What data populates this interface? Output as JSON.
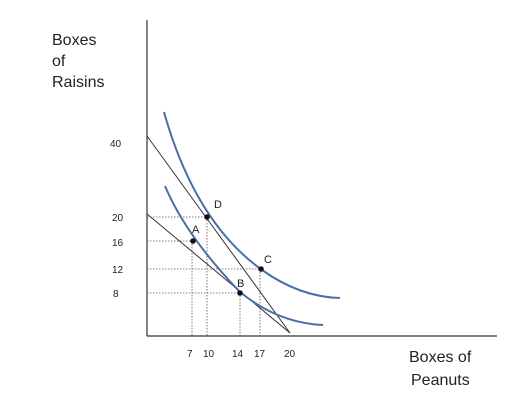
{
  "diagram": {
    "y_axis_label": [
      "Boxes",
      "of",
      "Raisins"
    ],
    "x_axis_label": [
      "Boxes of",
      "Peanuts"
    ],
    "y_ticks": [
      "40",
      "20",
      "16",
      "12",
      "8"
    ],
    "x_ticks": [
      "7",
      "10",
      "14",
      "17",
      "20"
    ],
    "points": [
      {
        "label": "A",
        "x": 7,
        "y": 16
      },
      {
        "label": "D",
        "x": 10,
        "y": 20
      },
      {
        "label": "B",
        "x": 14,
        "y": 8
      },
      {
        "label": "C",
        "x": 17,
        "y": 12
      }
    ],
    "budget_lines": [
      {
        "y_intercept": 40,
        "x_intercept": 20
      },
      {
        "y_intercept": 20,
        "x_intercept": 20
      }
    ],
    "curve_color": "#4a6fa5",
    "line_color": "#333333"
  }
}
